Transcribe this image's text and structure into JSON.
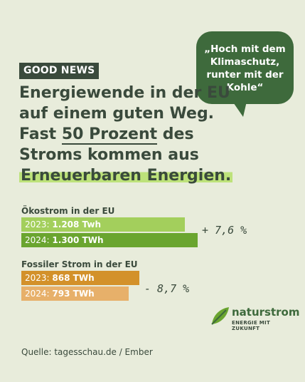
{
  "badge": "GOOD NEWS",
  "quote": "„Hoch mit dem Klimaschutz, runter mit der Kohle“",
  "headline": {
    "part1": "Energiewende in der EU auf einem guten Weg. Fast ",
    "underlined": "50 Prozent",
    "part2": " des Stroms kommen aus ",
    "highlighted": "Erneuerbaren Energien."
  },
  "chart_data": {
    "type": "bar",
    "unit": "TWh",
    "groups": [
      {
        "title": "Ökostrom in der EU",
        "bars": [
          {
            "year_label": "2023:",
            "value_label": "1.208 Twh",
            "value": 1208,
            "color": "#a3cf5c"
          },
          {
            "year_label": "2024:",
            "value_label": "1.300 TWh",
            "value": 1300,
            "color": "#6aa52f"
          }
        ],
        "change": "+ 7,6 %"
      },
      {
        "title": "Fossiler Strom in der EU",
        "bars": [
          {
            "year_label": "2023:",
            "value_label": "868 TWh",
            "value": 868,
            "color": "#d3912a"
          },
          {
            "year_label": "2024:",
            "value_label": "793 TWh",
            "value": 793,
            "color": "#e7b06a"
          }
        ],
        "change": "- 8,7 %"
      }
    ]
  },
  "logo": {
    "name": "naturstrom",
    "tagline": "ENERGIE MIT ZUKUNFT"
  },
  "source": "Quelle: tagesschau.de / Ember"
}
